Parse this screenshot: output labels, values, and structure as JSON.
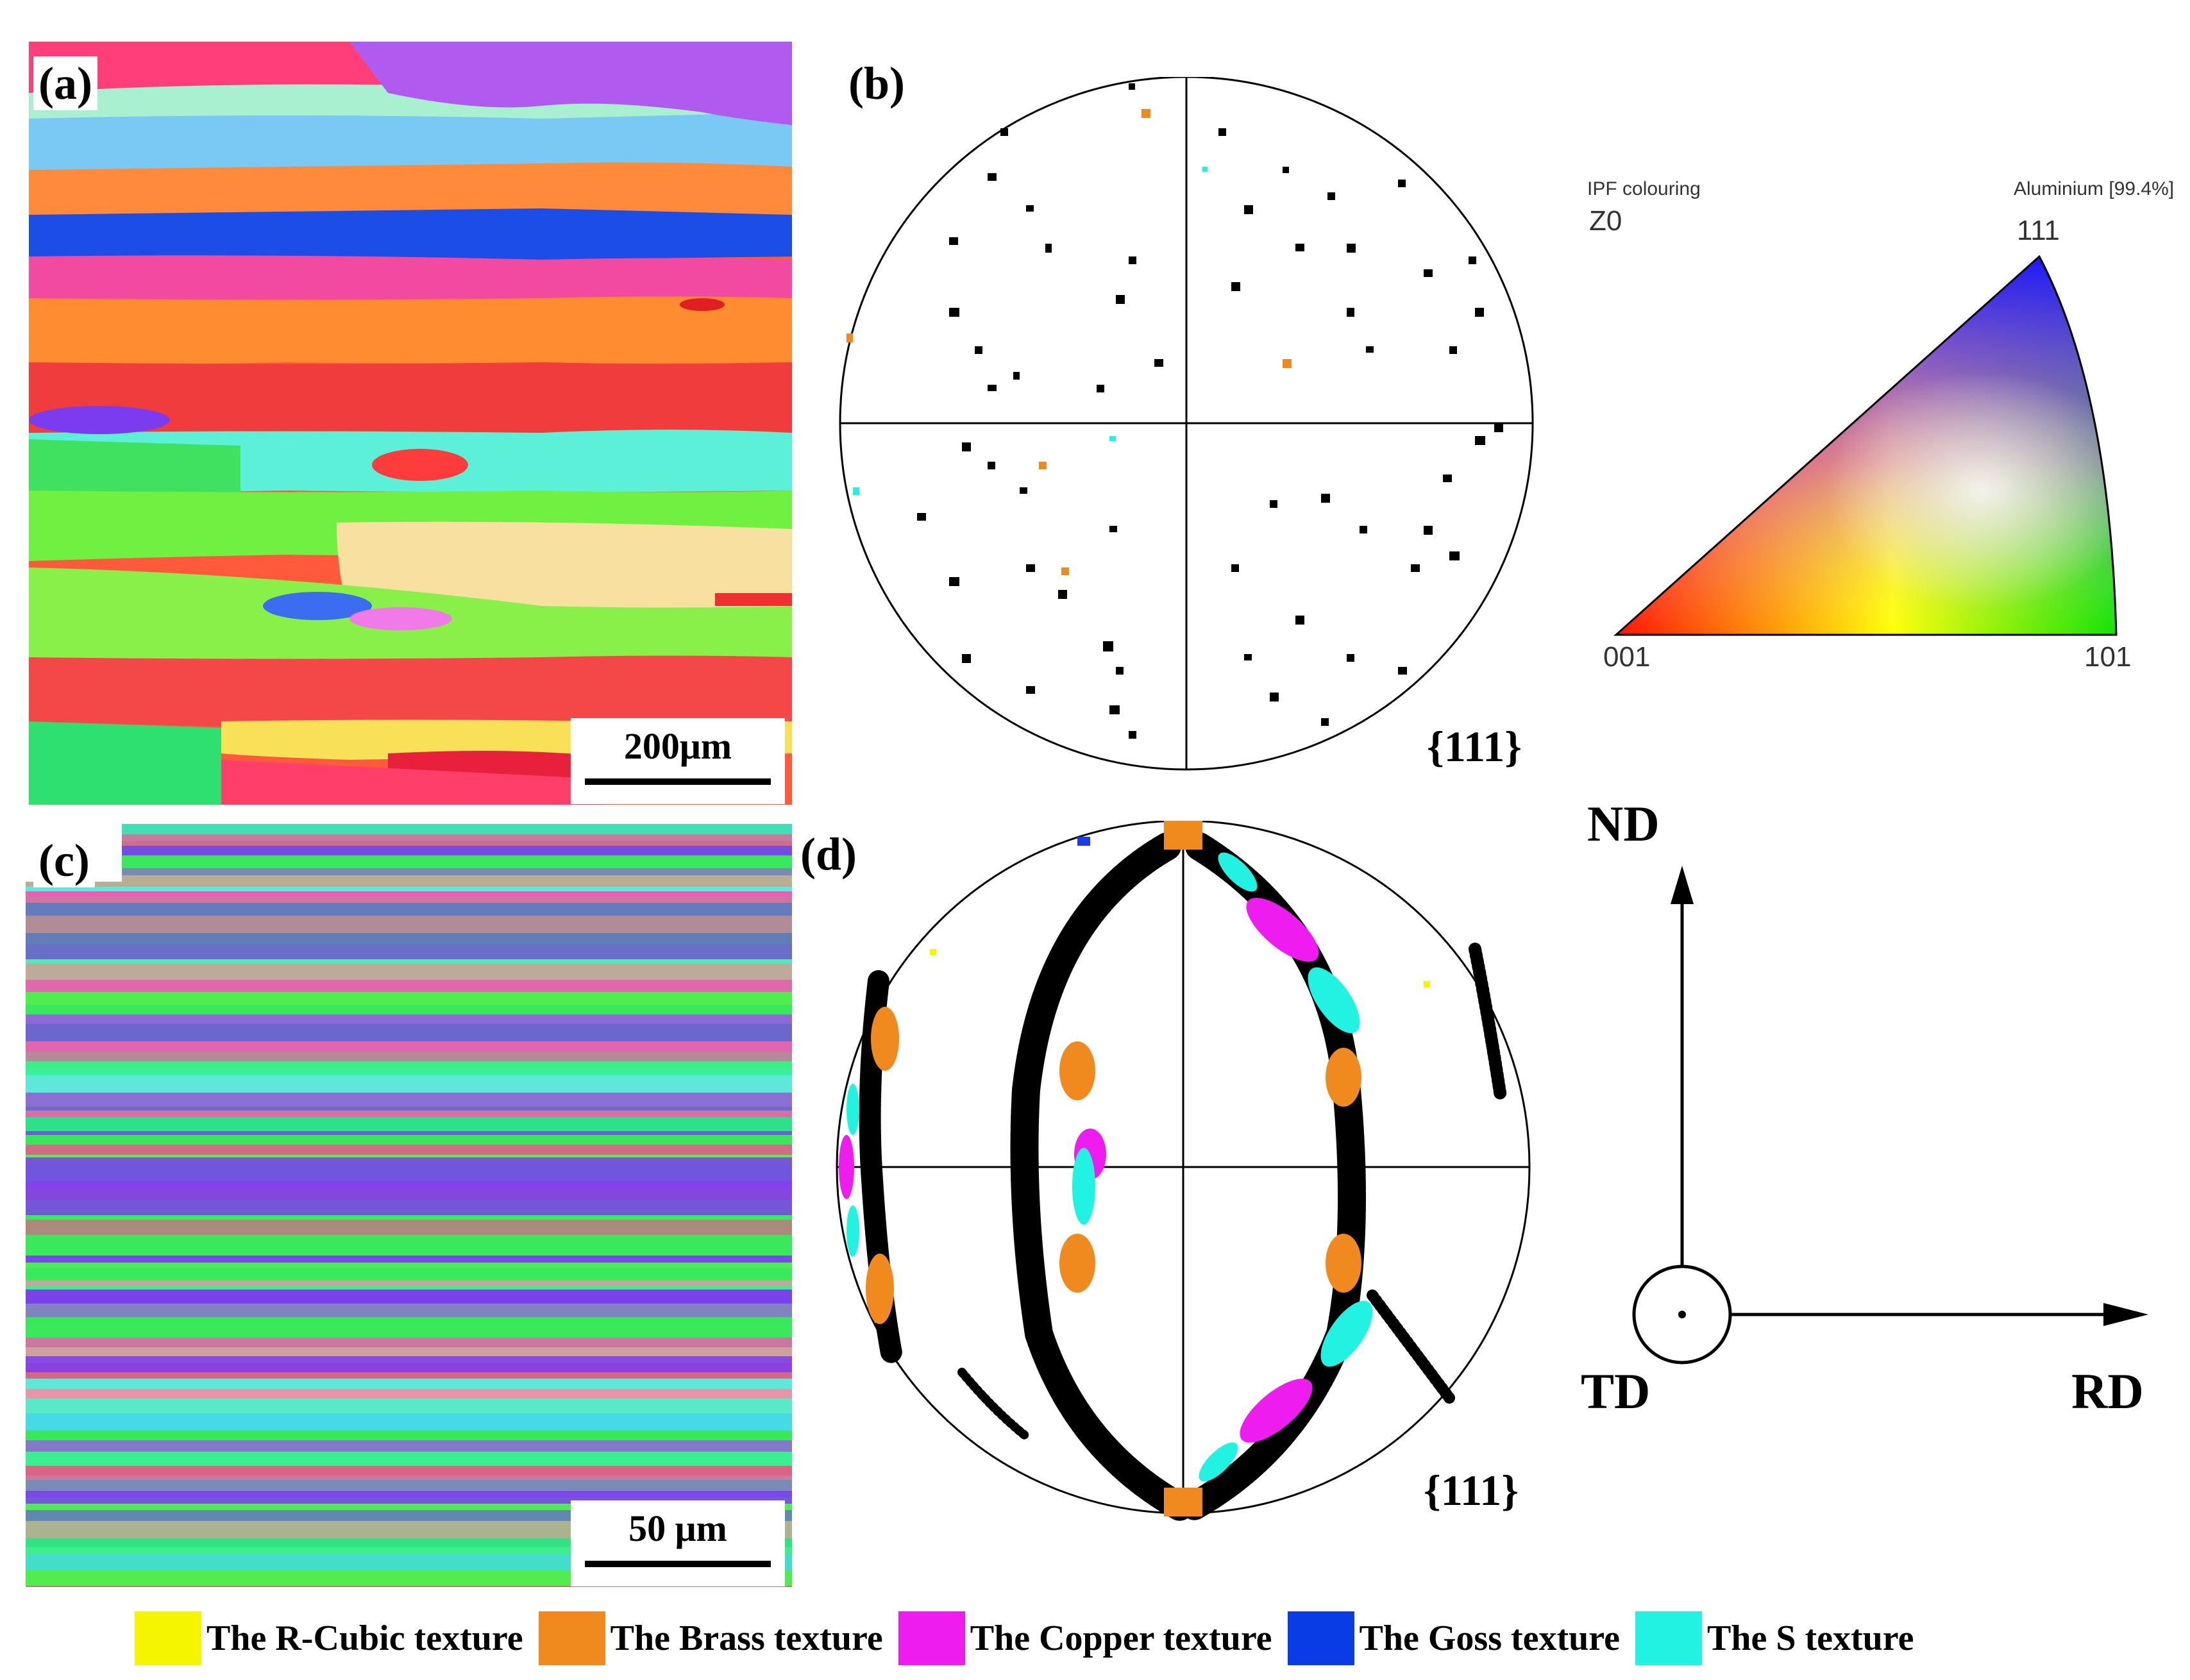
{
  "panels": {
    "a": {
      "label": "(a)",
      "scale": "200μm"
    },
    "b": {
      "label": "(b)",
      "pole": "{111}"
    },
    "c": {
      "label": "(c)",
      "scale": "50 μm"
    },
    "d": {
      "label": "(d)",
      "pole": "{111}"
    }
  },
  "ipf": {
    "title": "IPF colouring",
    "subtitle": "Z0",
    "material": "Aluminium [99.4%]",
    "corner_top": "111",
    "corner_left": "001",
    "corner_right": "101"
  },
  "axes": {
    "nd": "ND",
    "td": "TD",
    "rd": "RD"
  },
  "legend": [
    {
      "label": "The R-Cubic texture",
      "color": "#f5f500"
    },
    {
      "label": "The Brass texture",
      "color": "#f08a1e"
    },
    {
      "label": "The Copper texture",
      "color": "#ee1cee"
    },
    {
      "label": "The Goss texture",
      "color": "#0a3ce6"
    },
    {
      "label": "The S texture",
      "color": "#22f2e2"
    }
  ]
}
